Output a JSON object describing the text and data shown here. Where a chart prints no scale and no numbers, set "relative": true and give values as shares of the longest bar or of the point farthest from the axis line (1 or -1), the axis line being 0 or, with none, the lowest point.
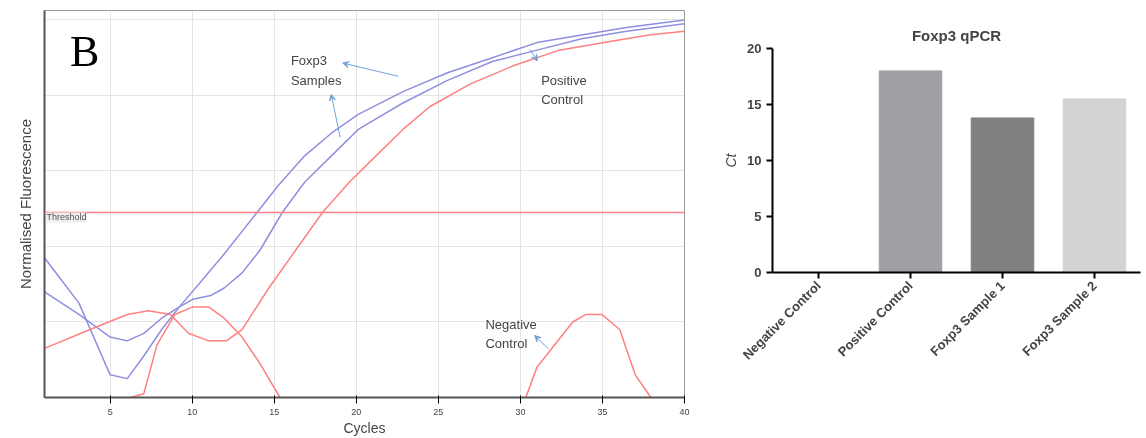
{
  "chart_data": [
    {
      "type": "line",
      "xlabel": "Cycles",
      "ylabel": "Normalised Fluorescence",
      "relative": true,
      "xlim": [
        1,
        40
      ],
      "xticks": [
        5,
        10,
        15,
        20,
        25,
        30,
        35,
        40
      ],
      "grid": true,
      "line_style": "solid",
      "marker": "none",
      "series": [
        {
          "color": "#8f8fe0",
          "x": [
            1,
            3.1,
            5.0,
            6.04,
            7.05,
            8.14,
            9.22,
            10.59,
            11.95,
            13.04,
            14.13,
            15.22,
            16.85,
            18.48,
            20.12,
            22.84,
            25.56,
            28.29,
            31.01,
            33.73,
            36.46,
            40
          ],
          "values": [
            0.37,
            0.25,
            0.06,
            0.05,
            0.11,
            0.18,
            0.24,
            0.31,
            0.38,
            0.44,
            0.5,
            0.56,
            0.64,
            0.7,
            0.75,
            0.81,
            0.86,
            0.9,
            0.94,
            0.96,
            0.98,
            1.0
          ]
        },
        {
          "color": "#8f8fe0",
          "x": [
            1,
            3.1,
            5.0,
            6.04,
            7.05,
            8.14,
            9.22,
            10.04,
            11.13,
            11.95,
            13.04,
            14.13,
            15.49,
            16.85,
            18.48,
            20.12,
            22.84,
            25.56,
            28.29,
            31.01,
            33.73,
            36.46,
            40
          ],
          "values": [
            0.28,
            0.22,
            0.16,
            0.15,
            0.17,
            0.21,
            0.24,
            0.26,
            0.27,
            0.29,
            0.33,
            0.39,
            0.49,
            0.57,
            0.64,
            0.71,
            0.78,
            0.84,
            0.89,
            0.92,
            0.95,
            0.97,
            0.99
          ]
        },
        {
          "color": "#ff8080",
          "x": [
            1,
            3.78,
            6.04,
            7.32,
            8.68,
            9.77,
            11.0,
            12.08,
            13.04,
            14.67,
            16.3,
            17.94,
            19.57,
            21.2,
            22.84,
            24.47,
            26.93,
            29.65,
            32.37,
            35.1,
            37.82,
            40
          ],
          "values": [
            0.13,
            0.18,
            0.22,
            0.23,
            0.22,
            0.17,
            0.15,
            0.15,
            0.18,
            0.29,
            0.39,
            0.49,
            0.57,
            0.64,
            0.71,
            0.77,
            0.83,
            0.88,
            0.92,
            0.94,
            0.96,
            0.97
          ]
        },
        {
          "color": "#ff8080",
          "x": [
            6.23,
            7.05,
            7.86,
            8.95,
            10.04,
            11.0,
            11.95,
            13.04,
            14.13,
            15.35,
            23,
            30.33,
            31.01,
            33.19,
            34.0,
            34.96,
            36.05,
            37.0,
            37.95
          ],
          "values": [
            0,
            0.01,
            0.14,
            0.22,
            0.24,
            0.24,
            0.21,
            0.16,
            0.09,
            0,
            null,
            0,
            0.08,
            0.2,
            0.22,
            0.22,
            0.18,
            0.06,
            0
          ]
        }
      ],
      "ref_lines": [
        {
          "axis": "y",
          "value": 0.49,
          "label": "Threshold",
          "color": "#ff8080"
        }
      ],
      "annotations": [
        "B",
        "Foxp3 Samples",
        "Positive Control",
        "Negative Control"
      ]
    },
    {
      "type": "bar",
      "title": "Foxp3 qPCR",
      "ylabel": "Ct",
      "categories": [
        "Negative Control",
        "Positive Control",
        "Foxp3 Sample 1",
        "Foxp3 Sample 2"
      ],
      "values": [
        null,
        18,
        13.8,
        15.5
      ],
      "colors": [
        null,
        "#a0a0a4",
        "#808080",
        "#d3d3d3"
      ],
      "ylim": [
        0,
        20
      ],
      "yticks": [
        0,
        5,
        10,
        15,
        20
      ],
      "grid": false
    }
  ]
}
